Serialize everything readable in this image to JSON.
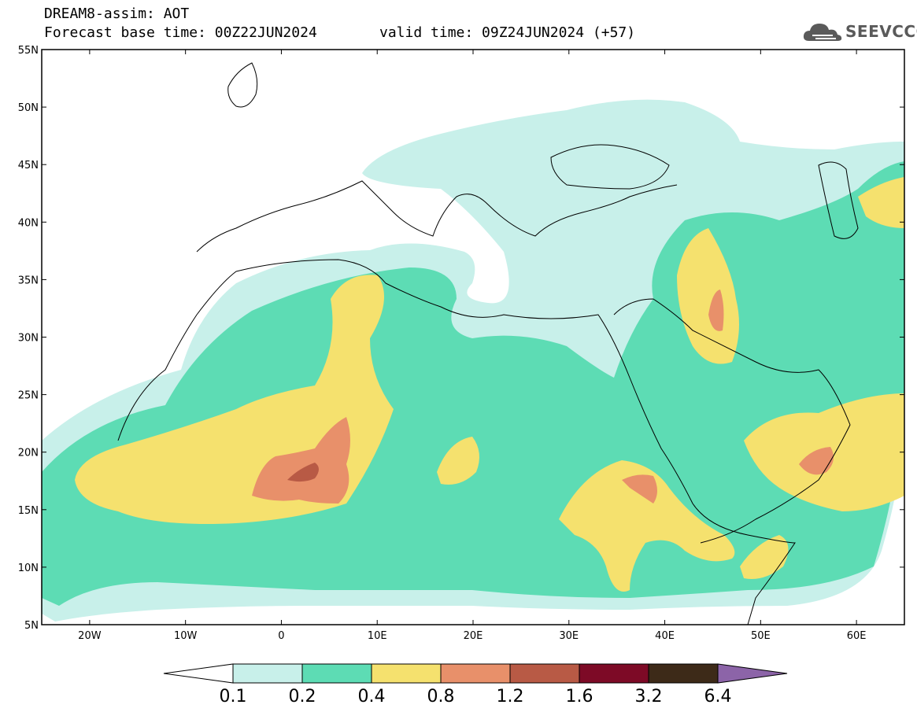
{
  "header": {
    "title": "DREAM8-assim: AOT",
    "base_time": "Forecast base time: 00Z22JUN2024",
    "valid_time": "valid time: 09Z24JUN2024 (+57)"
  },
  "logo": {
    "text": "SEEVCCC",
    "icon": "cloud-icon"
  },
  "map": {
    "lon_range": [
      -25,
      65
    ],
    "lat_range": [
      5,
      55
    ],
    "lat_ticks": [
      "5N",
      "10N",
      "15N",
      "20N",
      "25N",
      "30N",
      "35N",
      "40N",
      "45N",
      "50N",
      "55N"
    ],
    "lon_ticks": [
      "20W",
      "10W",
      "0",
      "10E",
      "20E",
      "30E",
      "40E",
      "50E",
      "60E"
    ]
  },
  "colorbar": {
    "levels": [
      "0.1",
      "0.2",
      "0.4",
      "0.8",
      "1.2",
      "1.6",
      "3.2",
      "6.4"
    ],
    "colors": {
      "under": "#ffffff",
      "c1": "#c8f0ea",
      "c2": "#5ddcb4",
      "c3": "#f5e16e",
      "c4": "#e8906a",
      "c5": "#b85a45",
      "c6": "#7d0a26",
      "c7": "#3d2a18",
      "over": "#8c64a8"
    }
  }
}
